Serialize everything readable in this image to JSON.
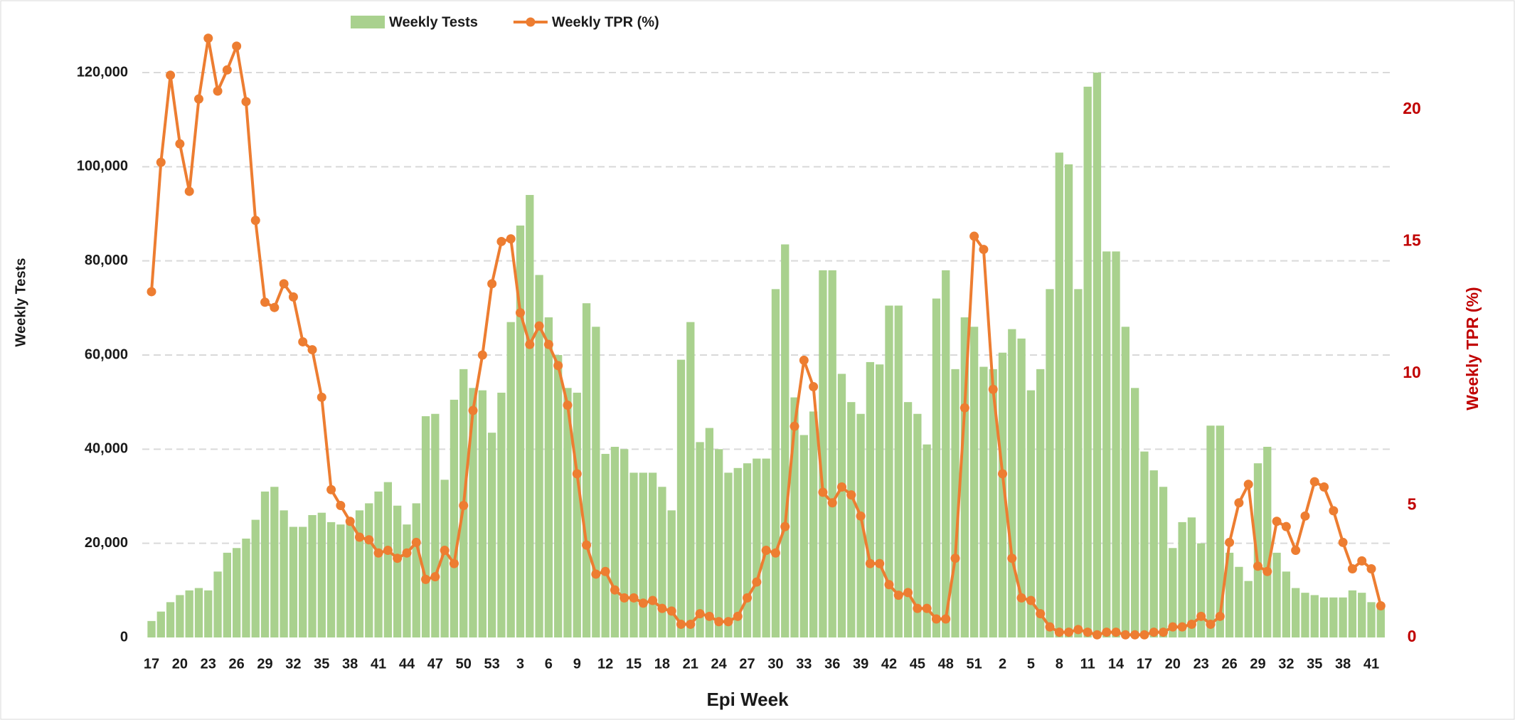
{
  "chart_data": {
    "type": "bar-line",
    "x_label": "Epi Week",
    "y_label": "Weekly Tests",
    "y2_label": "Weekly TPR (%)",
    "categories": [
      "17",
      null,
      null,
      "20",
      null,
      null,
      "23",
      null,
      null,
      "26",
      null,
      null,
      "29",
      null,
      null,
      "32",
      null,
      null,
      "35",
      null,
      null,
      "38",
      null,
      null,
      "41",
      null,
      null,
      "44",
      null,
      null,
      "47",
      null,
      null,
      "50",
      null,
      null,
      "53",
      null,
      null,
      "3",
      null,
      null,
      "6",
      null,
      null,
      "9",
      null,
      null,
      "12",
      null,
      null,
      "15",
      null,
      null,
      "18",
      null,
      null,
      "21",
      null,
      null,
      "24",
      null,
      null,
      "27",
      null,
      null,
      "30",
      null,
      null,
      "33",
      null,
      null,
      "36",
      null,
      null,
      "39",
      null,
      null,
      "42",
      null,
      null,
      "45",
      null,
      null,
      "48",
      null,
      null,
      "51",
      null,
      null,
      "2",
      null,
      null,
      "5",
      null,
      null,
      "8",
      null,
      null,
      "11",
      null,
      null,
      "14",
      null,
      null,
      "17",
      null,
      null,
      "20",
      null,
      null,
      "23",
      null,
      null,
      "26",
      null,
      null,
      "29",
      null,
      null,
      "32",
      null,
      null,
      "35",
      null,
      null,
      "38",
      null,
      null,
      "41",
      null
    ],
    "series": [
      {
        "name": "Weekly Tests",
        "type": "bar",
        "color": "#a9d18e",
        "values": [
          3500,
          5500,
          7500,
          9000,
          10000,
          10500,
          10000,
          14000,
          18000,
          19000,
          21000,
          25000,
          31000,
          32000,
          27000,
          23500,
          23500,
          26000,
          26500,
          24500,
          24000,
          25000,
          27000,
          28500,
          31000,
          33000,
          28000,
          24000,
          28500,
          47000,
          47500,
          33500,
          50500,
          57000,
          53000,
          52500,
          43500,
          52000,
          67000,
          87500,
          94000,
          77000,
          68000,
          60000,
          53000,
          52000,
          71000,
          66000,
          39000,
          40500,
          40000,
          35000,
          35000,
          35000,
          32000,
          27000,
          59000,
          67000,
          41500,
          44500,
          40000,
          35000,
          36000,
          37000,
          38000,
          38000,
          74000,
          83500,
          51000,
          43000,
          48000,
          78000,
          78000,
          56000,
          50000,
          47500,
          58500,
          58000,
          70500,
          70500,
          50000,
          47500,
          41000,
          72000,
          78000,
          57000,
          68000,
          66000,
          57500,
          57000,
          60500,
          65500,
          63500,
          52500,
          57000,
          74000,
          103000,
          100500,
          74000,
          117000,
          120000,
          82000,
          82000,
          66000,
          53000,
          39500,
          35500,
          32000,
          19000,
          24500,
          25500,
          20000,
          45000,
          45000,
          18000,
          15000,
          12000,
          37000,
          40500,
          18000,
          14000,
          10500,
          9500,
          9000,
          8500,
          8500,
          8500,
          10000,
          9500,
          7500,
          7000
        ]
      },
      {
        "name": "Weekly TPR (%)",
        "type": "line",
        "axis": "y2",
        "color": "#ed7d31",
        "values": [
          13.1,
          18.0,
          21.3,
          18.7,
          16.9,
          20.4,
          22.7,
          20.7,
          21.5,
          22.4,
          20.3,
          15.8,
          12.7,
          12.5,
          13.4,
          12.9,
          11.2,
          10.9,
          9.1,
          5.6,
          5.0,
          4.4,
          3.8,
          3.7,
          3.2,
          3.3,
          3.0,
          3.2,
          3.6,
          2.2,
          2.3,
          3.3,
          2.8,
          5.0,
          8.6,
          10.7,
          13.4,
          15.0,
          15.1,
          12.3,
          11.1,
          11.8,
          11.1,
          10.3,
          8.8,
          6.2,
          3.5,
          2.4,
          2.5,
          1.8,
          1.5,
          1.5,
          1.3,
          1.4,
          1.1,
          1.0,
          0.5,
          0.5,
          0.9,
          0.8,
          0.6,
          0.6,
          0.8,
          1.5,
          2.1,
          3.3,
          3.2,
          4.2,
          8.0,
          10.5,
          9.5,
          5.5,
          5.1,
          5.7,
          5.4,
          4.6,
          2.8,
          2.8,
          2.0,
          1.6,
          1.7,
          1.1,
          1.1,
          0.7,
          0.7,
          3.0,
          8.7,
          15.2,
          14.7,
          9.4,
          6.2,
          3.0,
          1.5,
          1.4,
          0.9,
          0.4,
          0.2,
          0.2,
          0.3,
          0.2,
          0.1,
          0.2,
          0.2,
          0.1,
          0.1,
          0.1,
          0.2,
          0.2,
          0.4,
          0.4,
          0.5,
          0.8,
          0.5,
          0.8,
          3.6,
          5.1,
          5.8,
          2.7,
          2.5,
          4.4,
          4.2,
          3.3,
          4.6,
          5.9,
          5.7,
          4.8,
          3.6,
          2.6,
          2.9,
          2.6,
          1.2
        ]
      }
    ],
    "ylim": [
      0,
      120000
    ],
    "yticks": [
      0,
      {
        "value": 20000,
        "label": "20,000"
      },
      {
        "value": 40000,
        "label": "40,000"
      },
      {
        "value": 60000,
        "label": "60,000"
      },
      {
        "value": 80000,
        "label": "80,000"
      },
      {
        "value": 100000,
        "label": "100,000"
      },
      {
        "value": 120000,
        "label": "120,000"
      }
    ],
    "y2lim": [
      0,
      21.4
    ],
    "y2ticks": [
      0,
      5,
      10,
      15,
      20
    ],
    "y2_color": "#c00000",
    "grid": true,
    "legend": "top"
  }
}
